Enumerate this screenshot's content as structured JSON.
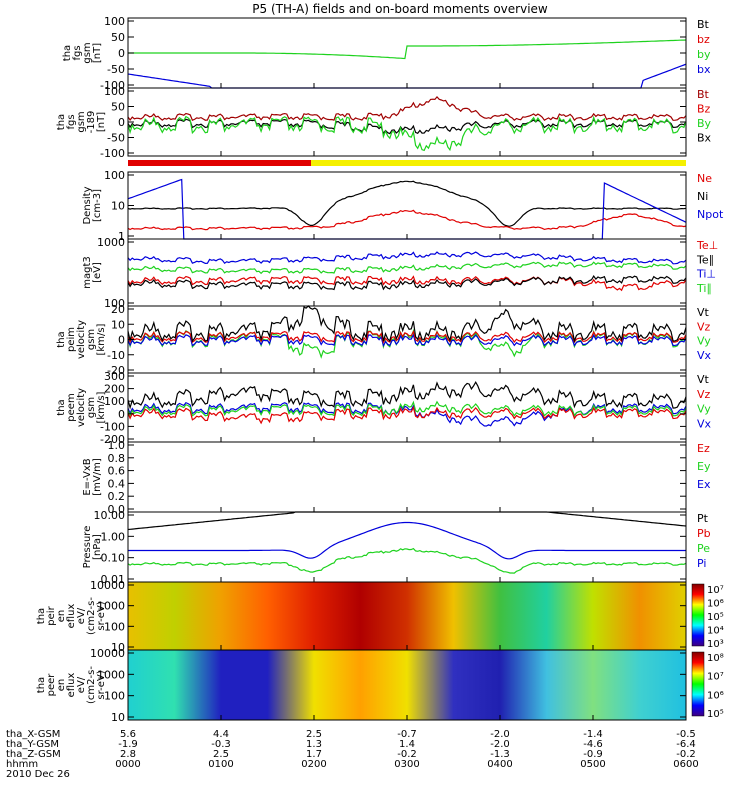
{
  "title": "P5 (TH-A) fields and on-board moments overview",
  "colors": {
    "black": "#000000",
    "red": "#e00000",
    "green": "#1ed21e",
    "blue": "#0000dc",
    "yellow": "#f5f000",
    "darkred": "#a00000"
  },
  "panels": [
    {
      "id": "fgs-zoom",
      "ylabel": [
        "tha",
        "fgs",
        "gsm",
        "[nT]"
      ],
      "ticks": [
        "100",
        "50",
        "0",
        "-50",
        "-100"
      ],
      "legend": [
        {
          "label": "Bt",
          "color": "black"
        },
        {
          "label": "bz",
          "color": "red"
        },
        {
          "label": "by",
          "color": "green"
        },
        {
          "label": "bx",
          "color": "blue"
        }
      ]
    },
    {
      "id": "fgs",
      "ylabel": [
        "tha",
        "fgs",
        "gsm",
        "-189",
        "[nT]"
      ],
      "ticks": [
        "100",
        "50",
        "0",
        "-50",
        "-100"
      ],
      "legend": [
        {
          "label": "Bt",
          "color": "darkred"
        },
        {
          "label": "Bz",
          "color": "red"
        },
        {
          "label": "By",
          "color": "green"
        },
        {
          "label": "Bx",
          "color": "black"
        }
      ]
    },
    {
      "id": "density",
      "ylabel": [
        "Density",
        "[cm-3]"
      ],
      "ticks": [
        "100",
        "10",
        "1"
      ],
      "legend": [
        {
          "label": "Ne",
          "color": "red"
        },
        {
          "label": "Ni",
          "color": "black"
        },
        {
          "label": "Npot",
          "color": "blue"
        }
      ]
    },
    {
      "id": "temp",
      "ylabel": [
        "magt3",
        "[eV]"
      ],
      "ticks": [
        "1000",
        "100"
      ],
      "legend": [
        {
          "label": "Te⊥",
          "color": "red"
        },
        {
          "label": "Te∥",
          "color": "black"
        },
        {
          "label": "Ti⊥",
          "color": "blue"
        },
        {
          "label": "Ti∥",
          "color": "green"
        }
      ]
    },
    {
      "id": "peim",
      "ylabel": [
        "tha",
        "peim",
        "velocity",
        "gsm",
        "[km/s]"
      ],
      "ticks": [
        "20",
        "10",
        "0",
        "-10",
        "-20"
      ],
      "legend": [
        {
          "label": "Vt",
          "color": "black"
        },
        {
          "label": "Vz",
          "color": "red"
        },
        {
          "label": "Vy",
          "color": "green"
        },
        {
          "label": "Vx",
          "color": "blue"
        }
      ]
    },
    {
      "id": "peem",
      "ylabel": [
        "tha",
        "peem",
        "velocity",
        "gsm",
        "[km/s]"
      ],
      "ticks": [
        "300",
        "200",
        "100",
        "0",
        "-100",
        "-200"
      ],
      "legend": [
        {
          "label": "Vt",
          "color": "black"
        },
        {
          "label": "Vz",
          "color": "red"
        },
        {
          "label": "Vy",
          "color": "green"
        },
        {
          "label": "Vx",
          "color": "blue"
        }
      ]
    },
    {
      "id": "efield",
      "ylabel": [
        "E=-VxB",
        "[mV/m]"
      ],
      "ticks": [
        "1.0",
        "0.8",
        "0.6",
        "0.4",
        "0.2",
        "0.0"
      ],
      "legend": [
        {
          "label": "Ez",
          "color": "red"
        },
        {
          "label": "Ey",
          "color": "green"
        },
        {
          "label": "Ex",
          "color": "blue"
        }
      ]
    },
    {
      "id": "pressure",
      "ylabel": [
        "Pressure",
        "[nPa]"
      ],
      "ticks": [
        "10.00",
        "1.00",
        "0.10",
        "0.01"
      ],
      "legend": [
        {
          "label": "Pt",
          "color": "black"
        },
        {
          "label": "Pb",
          "color": "red"
        },
        {
          "label": "Pe",
          "color": "green"
        },
        {
          "label": "Pi",
          "color": "blue"
        }
      ]
    },
    {
      "id": "peir",
      "ylabel": [
        "tha",
        "peir",
        "en",
        "eflux",
        "eV/",
        "(cm2-s-",
        "sr-eV)"
      ],
      "ticks": [
        "10000",
        "1000",
        "100",
        "10"
      ],
      "colorbar": [
        "10⁷",
        "10⁶",
        "10⁵",
        "10⁴",
        "10³"
      ]
    },
    {
      "id": "peer",
      "ylabel": [
        "tha",
        "peer",
        "en",
        "eflux",
        "eV/",
        "(cm2-s-",
        "sr-eV)"
      ],
      "ticks": [
        "10000",
        "1000",
        "100",
        "10"
      ],
      "colorbar": [
        "10⁸",
        "10⁷",
        "10⁶",
        "10⁵"
      ]
    }
  ],
  "xaxis": {
    "rows": [
      {
        "label": "tha_X-GSM",
        "values": [
          "5.6",
          "4.4",
          "2.5",
          "-0.7",
          "-2.0",
          "-1.4",
          "-0.5"
        ]
      },
      {
        "label": "tha_Y-GSM",
        "values": [
          "-1.9",
          "-0.3",
          "1.3",
          "1.4",
          "-2.0",
          "-4.6",
          "-6.4"
        ]
      },
      {
        "label": "tha_Z-GSM",
        "values": [
          "2.8",
          "2.5",
          "1.7",
          "-0.2",
          "-1.3",
          "-0.9",
          "-0.2"
        ]
      },
      {
        "label": "hhmm",
        "values": [
          "0000",
          "0100",
          "0200",
          "0300",
          "0400",
          "0500",
          "0600"
        ]
      }
    ],
    "date": "2010 Dec 26"
  },
  "chart_data": {
    "type": "line",
    "x": [
      "0000",
      "0100",
      "0200",
      "0300",
      "0400",
      "0500",
      "0600"
    ],
    "xlabel": "hhmm",
    "series": [
      {
        "name": "Ni",
        "values": [
          3,
          5,
          0.6,
          60,
          0.6,
          10,
          2
        ]
      },
      {
        "name": "Ne",
        "values": [
          0.8,
          1,
          0.5,
          3,
          0.5,
          8,
          2
        ]
      },
      {
        "name": "Pi",
        "values": [
          0.05,
          0.04,
          0.02,
          2,
          0.02,
          0.3,
          0.4
        ]
      },
      {
        "name": "Pe",
        "values": [
          0.02,
          0.02,
          0.01,
          0.1,
          0.01,
          0.04,
          0.05
        ]
      }
    ]
  }
}
